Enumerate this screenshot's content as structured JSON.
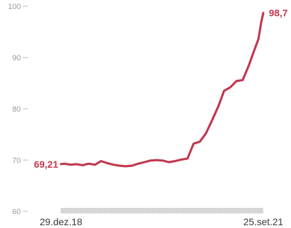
{
  "chart_data": {
    "type": "line",
    "title": "",
    "xlabel": "",
    "ylabel": "",
    "ylim": [
      60,
      100
    ],
    "yticks": [
      60,
      70,
      80,
      90,
      100
    ],
    "grid": false,
    "line_color": "#c0394f",
    "x_labels": {
      "start": "29.dez.18",
      "end": "25.set.21"
    },
    "annotations": {
      "first_value": "69,21",
      "last_value": "98,7"
    },
    "series": [
      {
        "x": [
          "2018-12-29",
          "2019-01-15",
          "2019-02-15",
          "2019-03-15",
          "2019-04-15",
          "2019-05-15",
          "2019-06-15",
          "2019-07-15",
          "2019-08-15",
          "2019-09-15",
          "2019-10-15",
          "2019-11-15",
          "2019-12-15",
          "2020-01-15",
          "2020-02-15",
          "2020-03-15",
          "2020-04-15",
          "2020-05-15",
          "2020-06-15",
          "2020-07-15",
          "2020-08-15",
          "2020-09-15",
          "2020-10-15",
          "2020-11-15",
          "2020-12-15",
          "2021-01-15",
          "2021-02-15",
          "2021-03-15",
          "2021-04-15",
          "2021-05-15",
          "2021-06-15",
          "2021-07-15",
          "2021-08-15",
          "2021-09-01",
          "2021-09-15",
          "2021-09-25"
        ],
        "values": [
          69.21,
          69.3,
          69.1,
          69.2,
          69.0,
          69.3,
          69.1,
          69.8,
          69.4,
          69.1,
          68.9,
          68.8,
          68.9,
          69.3,
          69.6,
          69.9,
          70.0,
          69.9,
          69.6,
          69.8,
          70.1,
          70.3,
          73.2,
          73.6,
          75.2,
          77.8,
          80.5,
          83.5,
          84.2,
          85.4,
          85.6,
          88.4,
          91.8,
          93.6,
          96.9,
          98.7
        ]
      }
    ]
  }
}
